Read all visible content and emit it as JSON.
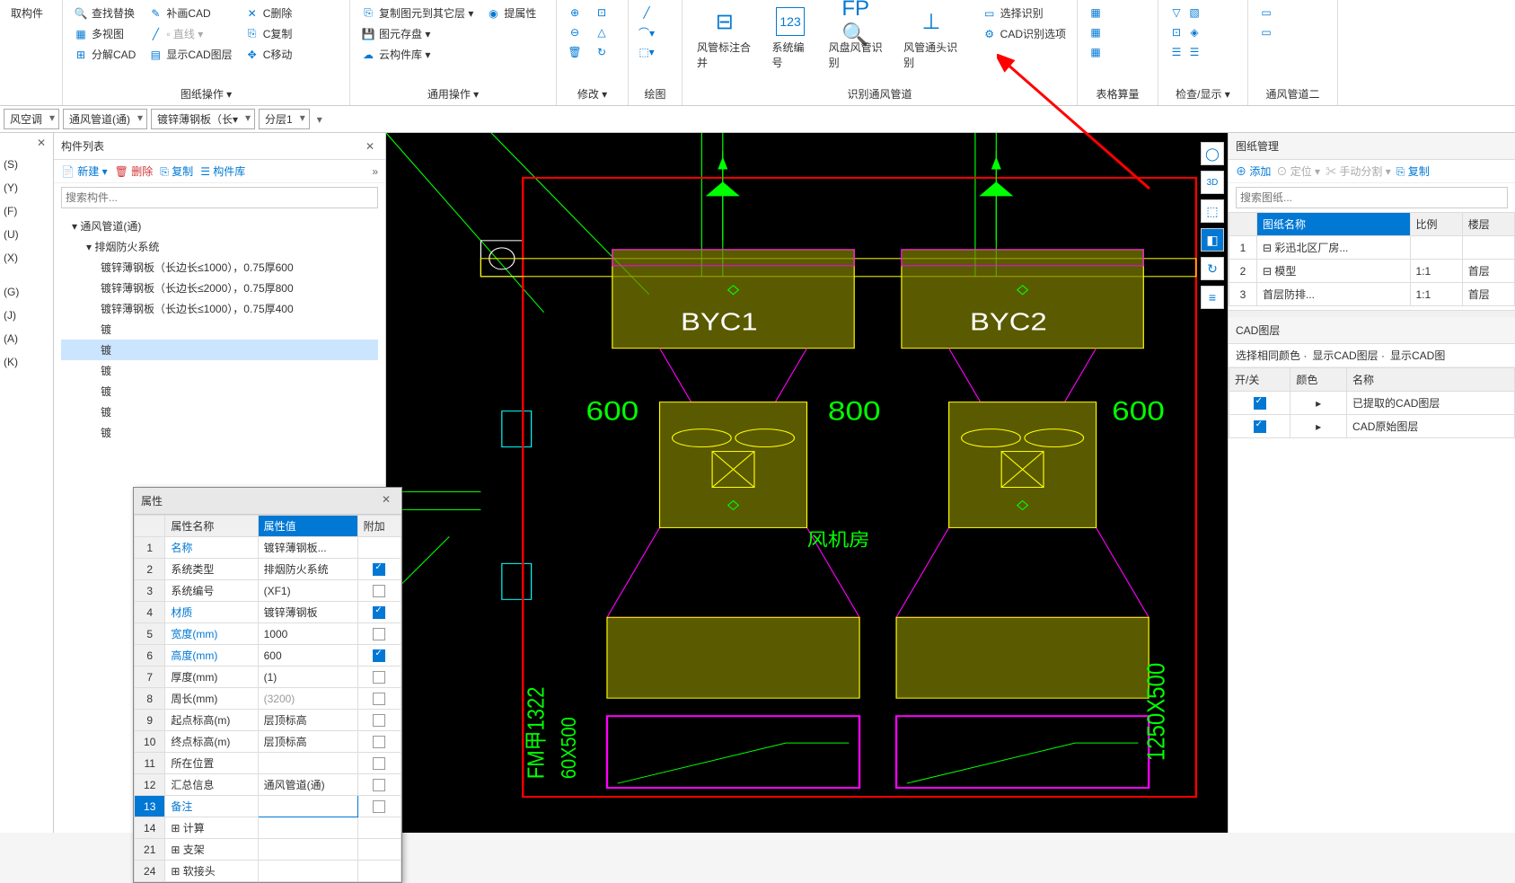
{
  "ribbon": {
    "group1_label": "图纸操作 ▾",
    "group1_col1": [
      "查找替换",
      "多视图",
      "分解CAD"
    ],
    "group1_col2": [
      "补画CAD",
      "▫ 直线 ▾",
      "显示CAD图层"
    ],
    "group1_col3": [
      "C删除",
      "C复制",
      "C移动"
    ],
    "left_top": "取构件",
    "group2_label": "通用操作 ▾",
    "group2_col1": [
      "复制图元到其它层 ▾",
      "图元存盘 ▾",
      "云构件库 ▾"
    ],
    "group2_col2": [
      "提属性"
    ],
    "group3_label": "修改 ▾",
    "group4_label": "绘图",
    "group5_label": "识别通风管道",
    "group5_items": [
      "风管标注合并",
      "系统编号",
      "风盘风管识别",
      "风管通头识别"
    ],
    "group5_right_col": [
      "选择识别",
      "CAD识别选项"
    ],
    "group6_label": "表格算量",
    "group7_label": "检查/显示 ▾",
    "group8_label": "通风管道二"
  },
  "filters": {
    "f1": "风空调",
    "f2": "通风管道(通)",
    "f3": "镀锌薄钢板（长▾",
    "f4": "分层1"
  },
  "left_sidebar_items": [
    "(S)",
    "(Y)",
    "(F)",
    "(U)",
    "(X)",
    "",
    "(G)",
    "(J)",
    "(A)",
    "(K)"
  ],
  "component_panel": {
    "title": "构件列表",
    "toolbar": [
      "新建 ▾",
      "删除",
      "复制",
      "构件库"
    ],
    "search_placeholder": "搜索构件...",
    "tree": [
      {
        "level": 1,
        "label": "▾ 通风管道(通)"
      },
      {
        "level": 2,
        "label": "▾ 排烟防火系统"
      },
      {
        "level": 3,
        "label": "镀锌薄钢板（长边长≤1000），0.75厚600"
      },
      {
        "level": 3,
        "label": "镀锌薄钢板（长边长≤2000），0.75厚800"
      },
      {
        "level": 3,
        "label": "镀锌薄钢板（长边长≤1000），0.75厚400"
      },
      {
        "level": 3,
        "label": "镀"
      },
      {
        "level": 3,
        "label": "镀",
        "selected": true
      },
      {
        "level": 3,
        "label": "镀"
      },
      {
        "level": 3,
        "label": "镀"
      },
      {
        "level": 3,
        "label": "镀"
      },
      {
        "level": 3,
        "label": "镀"
      }
    ]
  },
  "properties": {
    "title": "属性",
    "headers": [
      "",
      "属性名称",
      "属性值",
      "附加"
    ],
    "header_sel_idx": 2,
    "rows": [
      {
        "n": "1",
        "name": "名称",
        "value": "镀锌薄钢板...",
        "link": true,
        "chk": null
      },
      {
        "n": "2",
        "name": "系统类型",
        "value": "排烟防火系统",
        "link": false,
        "chk": true
      },
      {
        "n": "3",
        "name": "系统编号",
        "value": "(XF1)",
        "link": false,
        "chk": false
      },
      {
        "n": "4",
        "name": "材质",
        "value": "镀锌薄钢板",
        "link": true,
        "chk": true
      },
      {
        "n": "5",
        "name": "宽度(mm)",
        "value": "1000",
        "link": true,
        "chk": false
      },
      {
        "n": "6",
        "name": "高度(mm)",
        "value": "600",
        "link": true,
        "chk": true
      },
      {
        "n": "7",
        "name": "厚度(mm)",
        "value": "(1)",
        "link": false,
        "chk": false
      },
      {
        "n": "8",
        "name": "周长(mm)",
        "value": "(3200)",
        "link": false,
        "gray": true,
        "chk": false
      },
      {
        "n": "9",
        "name": "起点标高(m)",
        "value": "层顶标高",
        "link": false,
        "chk": false
      },
      {
        "n": "10",
        "name": "终点标高(m)",
        "value": "层顶标高",
        "link": false,
        "chk": false
      },
      {
        "n": "11",
        "name": "所在位置",
        "value": "",
        "link": false,
        "chk": false
      },
      {
        "n": "12",
        "name": "汇总信息",
        "value": "通风管道(通)",
        "link": false,
        "chk": false
      },
      {
        "n": "13",
        "name": "备注",
        "value": "",
        "link": true,
        "chk": false,
        "sel": true
      },
      {
        "n": "14",
        "name": "⊞ 计算",
        "value": "",
        "link": false,
        "chk": null
      },
      {
        "n": "21",
        "name": "⊞ 支架",
        "value": "",
        "link": false,
        "chk": null
      },
      {
        "n": "24",
        "name": "⊞ 软接头",
        "value": "",
        "link": false,
        "chk": null
      }
    ]
  },
  "right": {
    "drawing_header": "图纸管理",
    "drawing_toolbar": [
      "添加",
      "定位 ▾",
      "手动分割 ▾",
      "复制"
    ],
    "drawing_search": "搜索图纸...",
    "drawing_headers": [
      "",
      "图纸名称",
      "比例",
      "楼层"
    ],
    "drawing_header_sel_idx": 1,
    "drawing_rows": [
      {
        "n": "1",
        "name": "⊟ 彩迅北区厂房...",
        "scale": "",
        "floor": ""
      },
      {
        "n": "2",
        "name": "⊟ 模型",
        "scale": "1:1",
        "floor": "首层"
      },
      {
        "n": "3",
        "name": "    首层防排...",
        "scale": "1:1",
        "floor": "首层"
      }
    ],
    "cad_layer_header": "CAD图层",
    "cad_layer_toolbar": [
      "选择相同颜色 ·",
      "显示CAD图层 ·",
      "显示CAD图"
    ],
    "layer_headers": [
      "开/关",
      "颜色",
      "名称"
    ],
    "layer_rows": [
      {
        "on": true,
        "expand": "▸",
        "name": "已提取的CAD图层"
      },
      {
        "on": true,
        "expand": "▸",
        "name": "CAD原始图层"
      }
    ]
  },
  "canvas": {
    "labels": {
      "byc1": "BYC1",
      "byc2": "BYC2",
      "d600a": "600",
      "d800": "800",
      "d600b": "600",
      "room": "风机房",
      "v1250": "1250X500",
      "vfm": "FM甲1322",
      "v60": "60X500"
    },
    "colors": {
      "bg": "#000000",
      "green": "#00ff00",
      "yellow": "#ffff00",
      "olive": "#808000",
      "magenta": "#ff00ff",
      "cyan": "#00ffff",
      "red": "#ff0000",
      "white": "#ffffff"
    }
  }
}
